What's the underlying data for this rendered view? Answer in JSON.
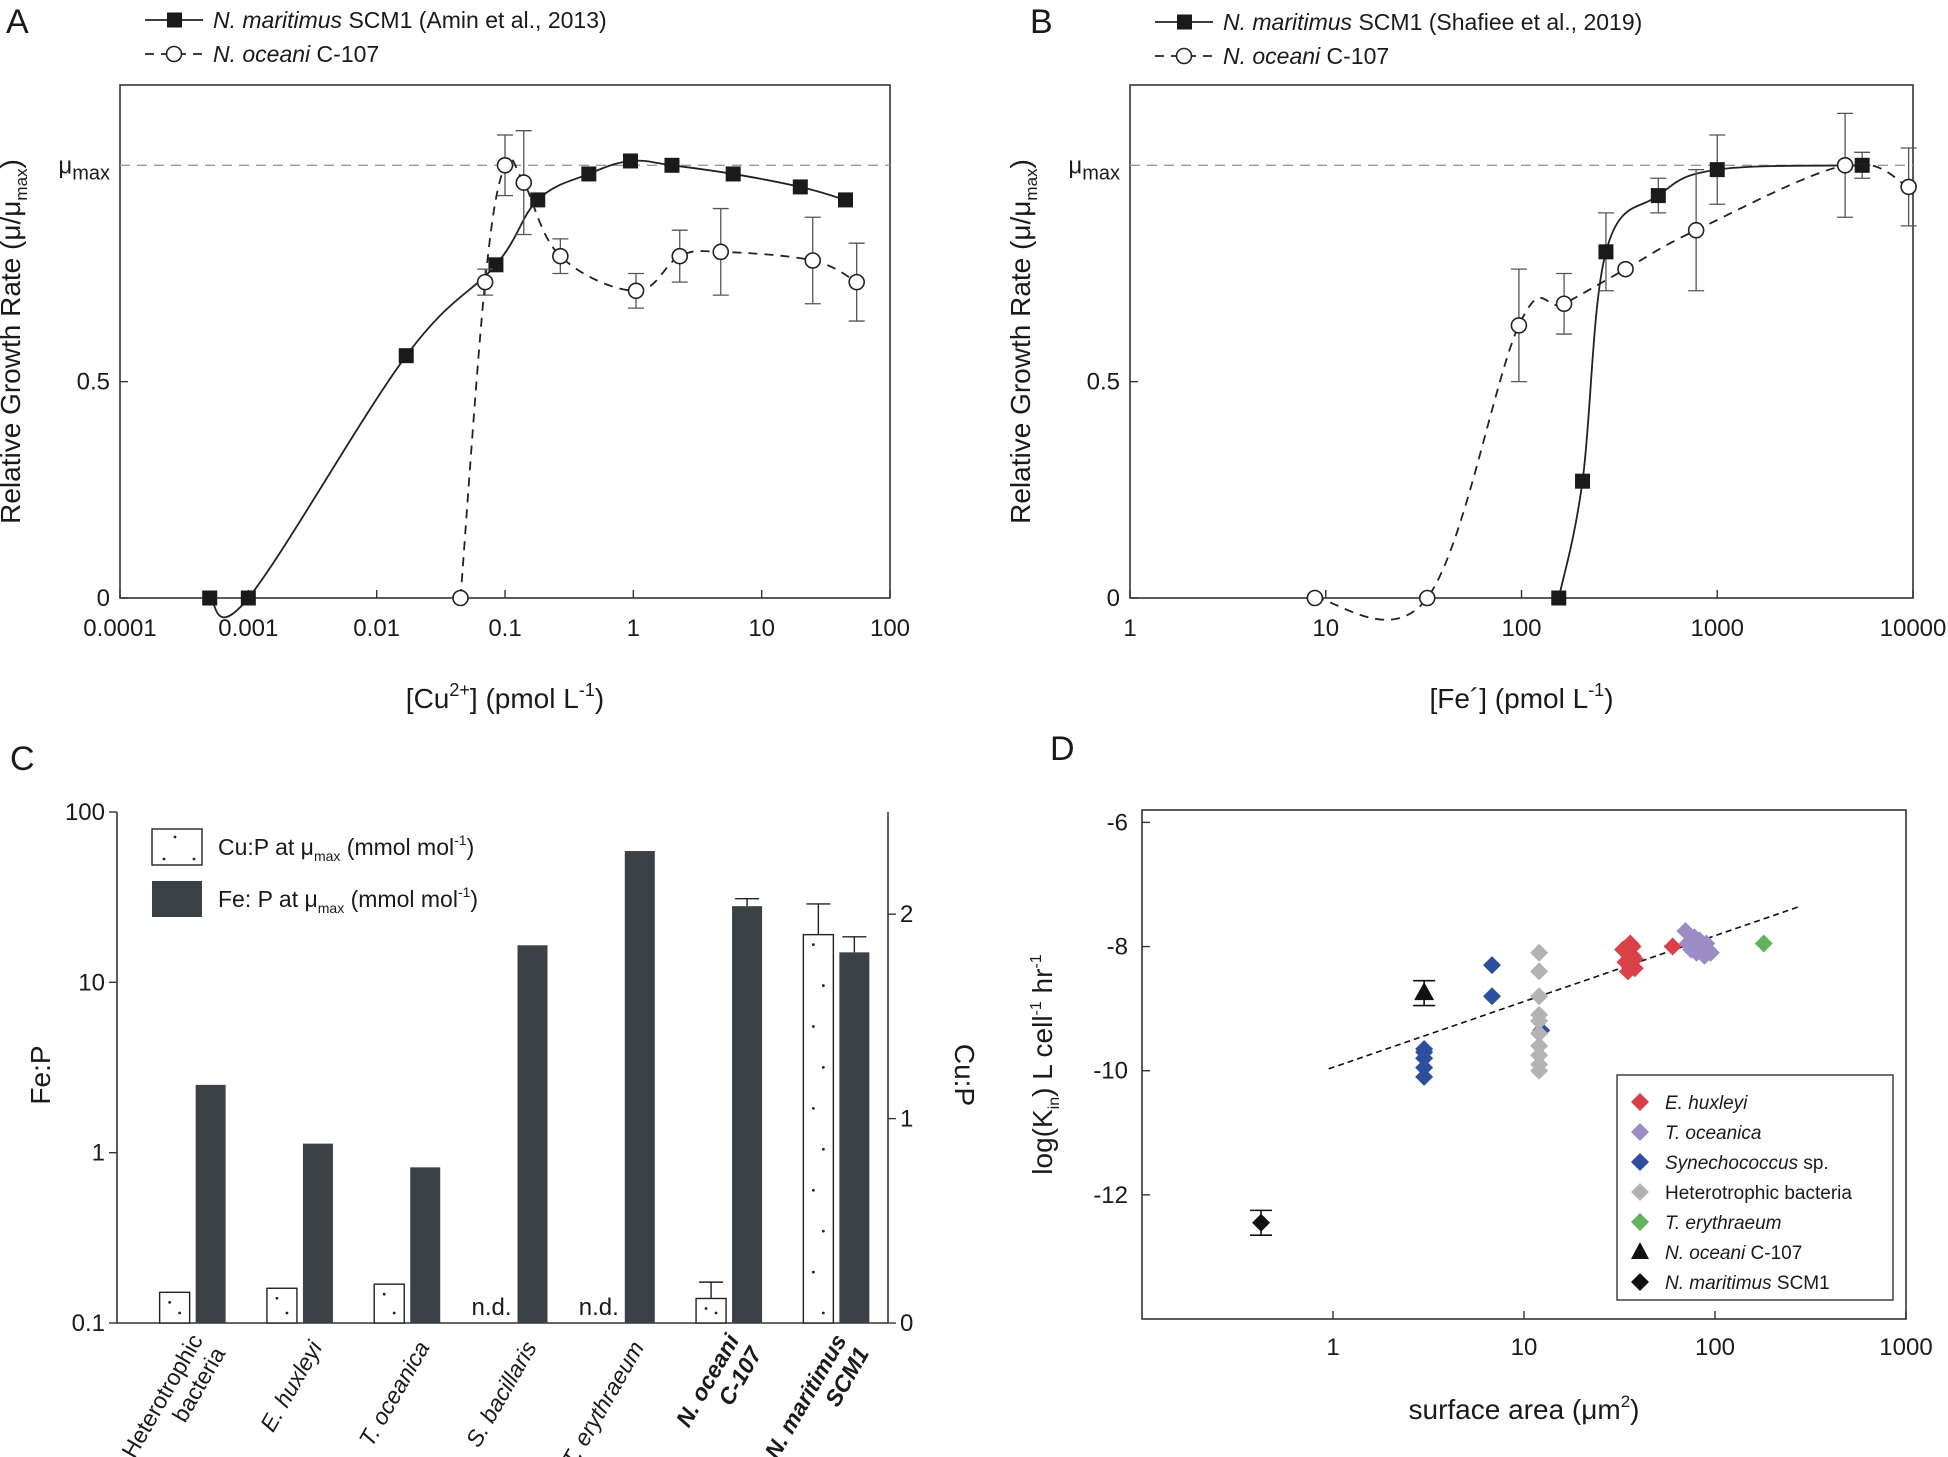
{
  "chart_data": [
    {
      "panel": "A",
      "type": "line",
      "xscale": "log",
      "xlim": [
        0.0001,
        100
      ],
      "ylim": [
        0,
        1.15
      ],
      "xticks": [
        "0.0001",
        "0.001",
        "0.01",
        "0.1",
        "1",
        "10",
        "100"
      ],
      "yticks": [
        {
          "value": 0,
          "label": "0"
        },
        {
          "value": 0.5,
          "label": "0.5"
        }
      ],
      "mu_label": "μ",
      "mu_sub": "max",
      "xlabel_parts": [
        "[Cu",
        "2+",
        "] (pmol L",
        "-1",
        ")"
      ],
      "ylabel_parts": [
        "Relative Growth Rate (μ/μ",
        "max",
        ")"
      ],
      "reference_line": 1.0,
      "series": [
        {
          "name_italic": "N. maritimus",
          "name_rest": " SCM1 (Amin et al., 2013)",
          "marker": "filled-square",
          "linestyle": "solid",
          "x": [
            0.0005,
            0.001,
            0.017,
            0.085,
            0.18,
            0.45,
            0.95,
            2,
            6,
            20,
            45
          ],
          "y": [
            0,
            0,
            0.56,
            0.77,
            0.92,
            0.98,
            1.01,
            1.0,
            0.98,
            0.95,
            0.92
          ],
          "err": [
            0,
            0,
            0,
            0,
            0,
            0,
            0,
            0,
            0,
            0,
            0
          ]
        },
        {
          "name_italic": "N. oceani",
          "name_rest": " C-107",
          "marker": "open-circle",
          "linestyle": "dashed",
          "x": [
            0.045,
            0.07,
            0.1,
            0.14,
            0.27,
            1.05,
            2.3,
            4.8,
            25,
            55
          ],
          "y": [
            0,
            0.73,
            1.0,
            0.96,
            0.79,
            0.71,
            0.79,
            0.8,
            0.78,
            0.73
          ],
          "err": [
            0,
            0.03,
            0.07,
            0.12,
            0.04,
            0.04,
            0.06,
            0.1,
            0.1,
            0.09
          ]
        }
      ]
    },
    {
      "panel": "B",
      "type": "line",
      "xscale": "log",
      "xlim": [
        1,
        10000
      ],
      "ylim": [
        0,
        1.15
      ],
      "xticks": [
        "1",
        "10",
        "100",
        "1000",
        "10000"
      ],
      "yticks": [
        {
          "value": 0,
          "label": "0"
        },
        {
          "value": 0.5,
          "label": "0.5"
        }
      ],
      "mu_label": "μ",
      "mu_sub": "max",
      "xlabel_parts": [
        "[Fe´] (pmol L",
        "-1",
        ")"
      ],
      "ylabel_parts": [
        "Relative Growth Rate (μ/μ",
        "max",
        ")"
      ],
      "reference_line": 1.0,
      "series": [
        {
          "name_italic": "N. maritimus",
          "name_rest": " SCM1 (Shafiee et al., 2019)",
          "marker": "filled-square",
          "linestyle": "solid",
          "x": [
            155,
            205,
            270,
            500,
            1000,
            5500
          ],
          "y": [
            0,
            0.27,
            0.8,
            0.93,
            0.99,
            1.0
          ],
          "err": [
            0,
            0,
            0.09,
            0.04,
            0.08,
            0.03
          ]
        },
        {
          "name_italic": "N. oceani",
          "name_rest": " C-107",
          "marker": "open-circle",
          "linestyle": "dashed",
          "x": [
            8.8,
            33,
            97,
            165,
            340,
            780,
            4500,
            9500
          ],
          "y": [
            0,
            0,
            0.63,
            0.68,
            0.76,
            0.85,
            1.0,
            0.95
          ],
          "err": [
            0,
            0,
            0.13,
            0.07,
            0,
            0.14,
            0.12,
            0.09
          ]
        }
      ]
    },
    {
      "panel": "C",
      "type": "bar",
      "left_axis": {
        "label": "Fe:P",
        "scale": "log",
        "range": [
          0.1,
          100
        ],
        "ticks": [
          "0.1",
          "1",
          "10",
          "100"
        ]
      },
      "right_axis": {
        "label": "Cu:P",
        "scale": "linear",
        "range": [
          0,
          2.5
        ],
        "ticks": [
          "0",
          "1",
          "2"
        ]
      },
      "legend": [
        {
          "pre": "Cu:P at μ",
          "sub": "max",
          "post": " (mmol mol",
          "sup": "-1",
          "end": ")"
        },
        {
          "pre": "Fe: P at μ",
          "sub": "max",
          "post": " (mmol mol",
          "sup": "-1",
          "end": ")"
        }
      ],
      "categories": [
        {
          "lines": [
            "Heterotrophic",
            "bacteria"
          ],
          "italic": false,
          "bold": false
        },
        {
          "lines": [
            "E. huxleyi"
          ],
          "italic": true,
          "bold": false
        },
        {
          "lines": [
            "T. oceanica"
          ],
          "italic": true,
          "bold": false
        },
        {
          "lines": [
            "S. bacillaris"
          ],
          "italic": true,
          "bold": false
        },
        {
          "lines": [
            "T. erythraeum"
          ],
          "italic": true,
          "bold": false
        },
        {
          "lines": [
            "N. oceani",
            "C-107"
          ],
          "italic": true,
          "bold": true
        },
        {
          "lines": [
            "N. maritimus",
            "SCM1"
          ],
          "italic": true,
          "bold": true
        }
      ],
      "series": [
        {
          "name": "Cu:P",
          "axis": "right",
          "values": [
            0.15,
            0.17,
            0.19,
            null,
            null,
            0.12,
            1.9
          ],
          "err": [
            0,
            0,
            0,
            0,
            0,
            0.08,
            0.15
          ]
        },
        {
          "name": "Fe:P",
          "axis": "left",
          "values": [
            2.5,
            1.13,
            0.82,
            16.5,
            59,
            28,
            15
          ],
          "err": [
            0,
            0,
            0,
            0,
            0,
            3,
            3.5
          ]
        }
      ],
      "nd_label": "n.d.",
      "nd_indices": [
        3,
        4
      ]
    },
    {
      "panel": "D",
      "type": "scatter",
      "xscale": "log",
      "xlim": [
        0.1,
        1000
      ],
      "ylim": [
        -14,
        -5.8
      ],
      "xticks": [
        "1",
        "10",
        "100",
        "1000"
      ],
      "yticks": [
        {
          "value": -6,
          "label": "-6"
        },
        {
          "value": -8,
          "label": "-8"
        },
        {
          "value": -10,
          "label": "-10"
        },
        {
          "value": -12,
          "label": "-12"
        }
      ],
      "xlabel_parts": [
        "surface area (μm",
        "2",
        ")"
      ],
      "ylabel_parts": [
        "log(K",
        "in",
        ") L cell",
        "-1",
        " hr",
        "-1"
      ],
      "fit_line": {
        "x": [
          0.95,
          280
        ],
        "y": [
          -9.97,
          -7.35
        ]
      },
      "series": [
        {
          "name_italic": "E. huxleyi",
          "name_rest": "",
          "color": "#d94048",
          "marker": "diamond",
          "x": [
            33,
            34,
            35,
            35,
            36,
            36,
            37,
            37,
            38,
            38,
            60
          ],
          "y": [
            -8.05,
            -8.25,
            -8.4,
            -8.1,
            -7.95,
            -8.3,
            -8.15,
            -8.0,
            -8.35,
            -8.2,
            -8.0
          ]
        },
        {
          "name_italic": "T. oceanica",
          "name_rest": "",
          "color": "#9c8cc6",
          "marker": "diamond",
          "x": [
            70,
            72,
            75,
            78,
            80,
            83,
            85,
            88,
            90,
            92,
            95
          ],
          "y": [
            -7.75,
            -7.95,
            -8.05,
            -7.85,
            -8.1,
            -7.9,
            -8.0,
            -8.15,
            -7.95,
            -8.05,
            -8.1
          ]
        },
        {
          "name_italic": "Synechococcus",
          "name_rest": " sp.",
          "color": "#2e4f9e",
          "marker": "diamond",
          "x": [
            3,
            3,
            3,
            3,
            3,
            6.8,
            6.8,
            12.3
          ],
          "y": [
            -9.65,
            -9.8,
            -9.95,
            -10.1,
            -9.7,
            -8.3,
            -8.8,
            -9.35
          ]
        },
        {
          "name_italic": "",
          "name_rest": "Heterotrophic bacteria",
          "color": "#b3b3b3",
          "marker": "diamond",
          "x": [
            12,
            12,
            12,
            12,
            12,
            12,
            12,
            12,
            12,
            12
          ],
          "y": [
            -8.1,
            -8.4,
            -8.8,
            -9.1,
            -9.2,
            -9.4,
            -9.6,
            -9.75,
            -9.9,
            -10.0
          ]
        },
        {
          "name_italic": "T. erythraeum",
          "name_rest": "",
          "color": "#62b35c",
          "marker": "diamond",
          "x": [
            180
          ],
          "y": [
            -7.95
          ]
        },
        {
          "name_italic": "N. oceani",
          "name_rest": " C-107",
          "color": "#111111",
          "marker": "triangle",
          "x": [
            3
          ],
          "y": [
            -8.75
          ],
          "err": [
            0.2
          ]
        },
        {
          "name_italic": "N. maritimus",
          "name_rest": " SCM1",
          "color": "#111111",
          "marker": "diamond",
          "x": [
            0.42
          ],
          "y": [
            -12.45
          ],
          "err": [
            0.2
          ]
        }
      ]
    }
  ]
}
